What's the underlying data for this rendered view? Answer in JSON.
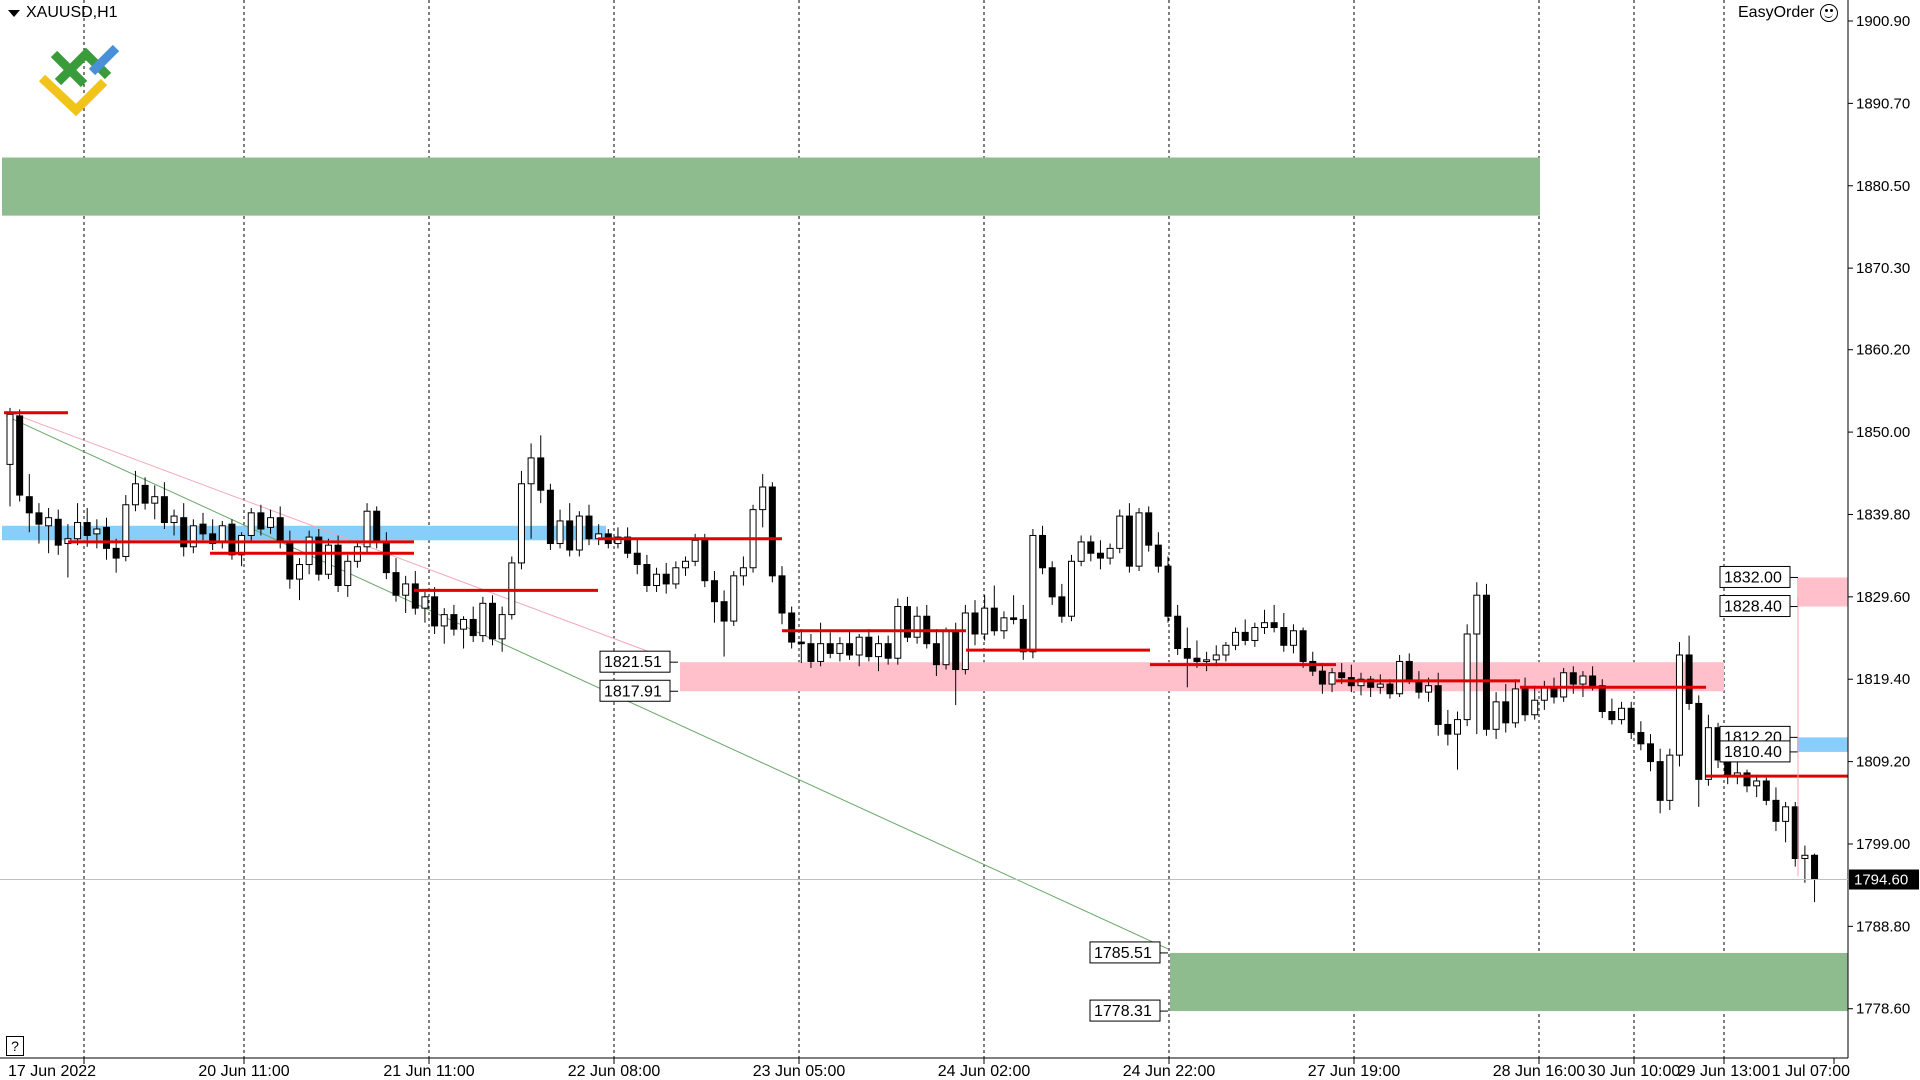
{
  "window": {
    "symbol_title": "XAUUSD,H1",
    "plugin_label": "EasyOrder",
    "plugin_icon": "smiley-icon",
    "help_label": "?",
    "logo_icon": "fx-logo-icon"
  },
  "chart_data": {
    "type": "candlestick",
    "symbol": "XAUUSD",
    "timeframe": "H1",
    "current_price": 1794.6,
    "ylim": [
      1772.5,
      1903.5
    ],
    "y_ticks": [
      1900.9,
      1890.7,
      1880.5,
      1870.3,
      1860.2,
      1850.0,
      1839.8,
      1829.6,
      1819.4,
      1809.2,
      1799.0,
      1788.8,
      1778.6
    ],
    "x_tick_labels": [
      "17 Jun 2022",
      "20 Jun 11:00",
      "21 Jun 11:00",
      "22 Jun 08:00",
      "23 Jun 05:00",
      "24 Jun 02:00",
      "24 Jun 22:00",
      "27 Jun 19:00",
      "28 Jun 16:00",
      "29 Jun 13:00",
      "30 Jun 10:00",
      "1 Jul 07:00"
    ],
    "grid": "vertical-dotted",
    "zones": [
      {
        "kind": "supply",
        "color": "#8fbc8f",
        "top": 1884.0,
        "bottom": 1876.8,
        "x_start_bar": 0,
        "x_end_bar": 161
      },
      {
        "kind": "demand",
        "color": "#8fbc8f",
        "top": 1785.51,
        "bottom": 1778.31,
        "x_start_bar": 122,
        "x_end_bar": 193,
        "labels": [
          "1785.51",
          "1778.31"
        ]
      },
      {
        "kind": "range",
        "color": "#ffc0cb",
        "top": 1821.51,
        "bottom": 1817.91,
        "x_start_bar": 71,
        "x_end_bar": 180,
        "labels": [
          "1821.51",
          "1817.91"
        ]
      },
      {
        "kind": "range",
        "color": "#ffc0cb",
        "top": 1832.0,
        "bottom": 1828.4,
        "x_start_bar": 188,
        "x_end_bar": 193,
        "labels": [
          "1832.00",
          "1828.40"
        ]
      },
      {
        "kind": "range",
        "color": "#87cefa",
        "top": 1812.2,
        "bottom": 1810.4,
        "x_start_bar": 188,
        "x_end_bar": 193,
        "labels": [
          "1812.20",
          "1810.40"
        ]
      },
      {
        "kind": "range",
        "color": "#87cefa",
        "top": 1838.4,
        "bottom": 1836.6,
        "x_start_bar": 0,
        "x_end_bar": 63
      }
    ],
    "levels": [
      {
        "price": 1852.4,
        "from_bar": 0,
        "to_bar": 7
      },
      {
        "price": 1836.4,
        "from_bar": 7,
        "to_bar": 24
      },
      {
        "price": 1835.0,
        "from_bar": 24,
        "to_bar": 43
      },
      {
        "price": 1830.4,
        "from_bar": 43,
        "to_bar": 62
      },
      {
        "price": 1836.8,
        "from_bar": 62,
        "to_bar": 82
      },
      {
        "price": 1825.4,
        "from_bar": 82,
        "to_bar": 101
      },
      {
        "price": 1823.0,
        "from_bar": 101,
        "to_bar": 120
      },
      {
        "price": 1821.2,
        "from_bar": 120,
        "to_bar": 140
      },
      {
        "price": 1819.2,
        "from_bar": 140,
        "to_bar": 159
      },
      {
        "price": 1818.4,
        "from_bar": 159,
        "to_bar": 179
      },
      {
        "price": 1807.4,
        "from_bar": 179,
        "to_bar": 193
      }
    ],
    "trendlines": [
      {
        "color": "#6aa86a",
        "from": [
          0,
          1852.0
        ],
        "to": [
          121,
          1786.0
        ]
      },
      {
        "color": "#f4a6b6",
        "from": [
          0,
          1852.6
        ],
        "to": [
          68,
          1822.2
        ]
      }
    ],
    "candles_ohlc": [
      [
        1846.0,
        1853.0,
        1840.8,
        1852.2
      ],
      [
        1852.0,
        1852.8,
        1841.4,
        1842.2
      ],
      [
        1842.0,
        1844.8,
        1837.6,
        1840.0
      ],
      [
        1840.0,
        1841.2,
        1836.2,
        1838.6
      ],
      [
        1838.4,
        1840.6,
        1835.0,
        1839.4
      ],
      [
        1839.2,
        1840.4,
        1834.8,
        1836.0
      ],
      [
        1836.2,
        1838.6,
        1832.0,
        1836.8
      ],
      [
        1836.8,
        1841.2,
        1836.0,
        1838.8
      ],
      [
        1838.8,
        1840.6,
        1835.8,
        1837.2
      ],
      [
        1837.4,
        1839.2,
        1835.6,
        1838.0
      ],
      [
        1838.2,
        1839.4,
        1834.2,
        1835.6
      ],
      [
        1835.6,
        1836.8,
        1832.6,
        1834.4
      ],
      [
        1834.6,
        1842.2,
        1834.0,
        1841.0
      ],
      [
        1841.0,
        1845.2,
        1840.2,
        1843.6
      ],
      [
        1843.4,
        1844.4,
        1840.4,
        1841.2
      ],
      [
        1841.2,
        1843.4,
        1839.2,
        1842.0
      ],
      [
        1842.0,
        1843.8,
        1838.0,
        1838.8
      ],
      [
        1838.8,
        1840.4,
        1837.2,
        1839.6
      ],
      [
        1839.4,
        1841.2,
        1834.6,
        1835.8
      ],
      [
        1835.8,
        1839.2,
        1835.0,
        1838.4
      ],
      [
        1838.6,
        1840.0,
        1836.6,
        1837.4
      ],
      [
        1837.4,
        1839.2,
        1835.4,
        1836.2
      ],
      [
        1836.4,
        1839.0,
        1835.6,
        1838.4
      ],
      [
        1838.6,
        1839.2,
        1834.2,
        1834.8
      ],
      [
        1834.8,
        1837.6,
        1833.4,
        1837.2
      ],
      [
        1837.2,
        1840.6,
        1836.4,
        1840.0
      ],
      [
        1840.0,
        1841.0,
        1837.2,
        1838.0
      ],
      [
        1838.2,
        1840.4,
        1837.4,
        1839.4
      ],
      [
        1839.4,
        1840.8,
        1835.6,
        1836.4
      ],
      [
        1836.4,
        1837.8,
        1830.6,
        1831.8
      ],
      [
        1831.8,
        1834.4,
        1829.2,
        1833.6
      ],
      [
        1833.6,
        1837.8,
        1832.4,
        1837.0
      ],
      [
        1837.0,
        1838.0,
        1831.6,
        1832.4
      ],
      [
        1832.4,
        1836.8,
        1831.8,
        1836.0
      ],
      [
        1836.0,
        1837.2,
        1830.2,
        1831.0
      ],
      [
        1831.0,
        1834.8,
        1829.6,
        1834.0
      ],
      [
        1834.0,
        1836.4,
        1833.2,
        1835.8
      ],
      [
        1835.8,
        1841.2,
        1835.0,
        1840.2
      ],
      [
        1840.2,
        1840.8,
        1835.6,
        1836.4
      ],
      [
        1836.4,
        1837.6,
        1831.8,
        1832.6
      ],
      [
        1832.6,
        1834.4,
        1829.0,
        1829.8
      ],
      [
        1829.8,
        1832.2,
        1827.6,
        1831.2
      ],
      [
        1831.2,
        1832.8,
        1827.4,
        1828.2
      ],
      [
        1828.2,
        1830.2,
        1826.4,
        1829.6
      ],
      [
        1829.6,
        1830.8,
        1825.0,
        1826.0
      ],
      [
        1826.0,
        1828.2,
        1823.8,
        1827.4
      ],
      [
        1827.4,
        1828.6,
        1824.8,
        1825.6
      ],
      [
        1825.6,
        1827.2,
        1823.2,
        1826.8
      ],
      [
        1826.8,
        1828.4,
        1824.0,
        1824.8
      ],
      [
        1824.8,
        1829.6,
        1824.0,
        1828.8
      ],
      [
        1828.8,
        1829.8,
        1823.6,
        1824.4
      ],
      [
        1824.4,
        1828.4,
        1822.8,
        1827.4
      ],
      [
        1827.4,
        1834.6,
        1826.8,
        1833.8
      ],
      [
        1833.8,
        1845.2,
        1833.0,
        1843.6
      ],
      [
        1843.6,
        1848.6,
        1836.8,
        1846.8
      ],
      [
        1846.8,
        1849.6,
        1841.2,
        1842.8
      ],
      [
        1842.8,
        1843.6,
        1835.4,
        1836.2
      ],
      [
        1836.2,
        1840.4,
        1835.6,
        1839.0
      ],
      [
        1839.0,
        1841.2,
        1834.6,
        1835.4
      ],
      [
        1835.4,
        1840.2,
        1834.6,
        1839.6
      ],
      [
        1839.6,
        1841.0,
        1836.0,
        1836.8
      ],
      [
        1836.8,
        1838.6,
        1836.0,
        1837.4
      ],
      [
        1837.4,
        1838.0,
        1835.6,
        1836.2
      ],
      [
        1836.2,
        1838.2,
        1835.6,
        1837.0
      ],
      [
        1837.0,
        1838.2,
        1834.4,
        1835.0
      ],
      [
        1835.0,
        1836.8,
        1832.4,
        1833.6
      ],
      [
        1833.6,
        1834.8,
        1830.2,
        1831.0
      ],
      [
        1831.0,
        1833.2,
        1830.2,
        1832.4
      ],
      [
        1832.4,
        1833.8,
        1830.0,
        1831.2
      ],
      [
        1831.2,
        1834.0,
        1830.6,
        1833.2
      ],
      [
        1833.2,
        1834.6,
        1832.2,
        1834.0
      ],
      [
        1834.0,
        1837.4,
        1833.4,
        1836.6
      ],
      [
        1836.6,
        1837.4,
        1830.8,
        1831.6
      ],
      [
        1831.6,
        1832.8,
        1826.4,
        1829.0
      ],
      [
        1829.0,
        1830.4,
        1822.2,
        1826.6
      ],
      [
        1826.6,
        1832.8,
        1826.0,
        1832.2
      ],
      [
        1832.2,
        1834.6,
        1831.0,
        1833.2
      ],
      [
        1833.2,
        1841.0,
        1832.6,
        1840.4
      ],
      [
        1840.4,
        1844.8,
        1838.2,
        1843.2
      ],
      [
        1843.2,
        1843.8,
        1831.4,
        1832.2
      ],
      [
        1832.2,
        1833.4,
        1826.2,
        1827.6
      ],
      [
        1827.6,
        1828.4,
        1823.2,
        1824.0
      ],
      [
        1824.0,
        1825.6,
        1821.4,
        1823.8
      ],
      [
        1823.8,
        1825.0,
        1820.8,
        1821.6
      ],
      [
        1821.6,
        1826.4,
        1821.0,
        1823.8
      ],
      [
        1823.8,
        1825.2,
        1822.0,
        1822.6
      ],
      [
        1822.6,
        1824.6,
        1821.6,
        1823.8
      ],
      [
        1823.8,
        1825.4,
        1821.8,
        1822.4
      ],
      [
        1822.4,
        1825.0,
        1821.0,
        1824.6
      ],
      [
        1824.6,
        1825.6,
        1821.6,
        1822.2
      ],
      [
        1822.2,
        1824.8,
        1820.4,
        1823.8
      ],
      [
        1823.8,
        1824.8,
        1821.2,
        1822.0
      ],
      [
        1822.0,
        1829.4,
        1821.2,
        1828.4
      ],
      [
        1828.4,
        1829.6,
        1824.0,
        1824.6
      ],
      [
        1824.6,
        1828.4,
        1823.8,
        1827.2
      ],
      [
        1827.2,
        1828.6,
        1823.2,
        1823.8
      ],
      [
        1823.8,
        1825.6,
        1819.8,
        1821.2
      ],
      [
        1821.2,
        1825.8,
        1820.6,
        1825.4
      ],
      [
        1825.4,
        1826.4,
        1816.2,
        1820.6
      ],
      [
        1820.6,
        1828.6,
        1820.0,
        1827.6
      ],
      [
        1827.6,
        1829.2,
        1823.6,
        1825.0
      ],
      [
        1825.0,
        1829.8,
        1824.2,
        1828.2
      ],
      [
        1828.2,
        1831.0,
        1824.8,
        1825.4
      ],
      [
        1825.4,
        1827.8,
        1824.4,
        1827.0
      ],
      [
        1827.0,
        1829.8,
        1826.2,
        1826.8
      ],
      [
        1826.8,
        1828.6,
        1821.8,
        1822.8
      ],
      [
        1822.8,
        1838.0,
        1822.0,
        1837.2
      ],
      [
        1837.2,
        1838.4,
        1832.4,
        1833.2
      ],
      [
        1833.2,
        1834.0,
        1828.6,
        1829.6
      ],
      [
        1829.6,
        1831.2,
        1826.4,
        1827.2
      ],
      [
        1827.2,
        1834.8,
        1826.6,
        1834.0
      ],
      [
        1834.0,
        1837.2,
        1833.4,
        1836.4
      ],
      [
        1836.4,
        1837.2,
        1834.0,
        1835.0
      ],
      [
        1835.0,
        1836.6,
        1833.0,
        1834.4
      ],
      [
        1834.4,
        1836.2,
        1833.6,
        1835.6
      ],
      [
        1835.6,
        1840.4,
        1835.0,
        1839.6
      ],
      [
        1839.6,
        1841.2,
        1832.6,
        1833.4
      ],
      [
        1833.4,
        1840.6,
        1832.8,
        1840.0
      ],
      [
        1840.0,
        1840.8,
        1835.2,
        1836.0
      ],
      [
        1836.0,
        1837.6,
        1832.6,
        1833.4
      ],
      [
        1833.4,
        1834.6,
        1826.4,
        1827.2
      ],
      [
        1827.2,
        1828.6,
        1822.4,
        1823.2
      ],
      [
        1823.2,
        1825.8,
        1818.4,
        1822.0
      ],
      [
        1822.0,
        1824.2,
        1820.8,
        1821.6
      ],
      [
        1821.6,
        1822.8,
        1820.4,
        1821.8
      ],
      [
        1821.8,
        1823.6,
        1821.0,
        1822.4
      ],
      [
        1822.4,
        1824.0,
        1821.6,
        1823.6
      ],
      [
        1823.6,
        1825.8,
        1823.0,
        1825.2
      ],
      [
        1825.2,
        1826.8,
        1823.6,
        1824.2
      ],
      [
        1824.2,
        1826.4,
        1823.4,
        1825.8
      ],
      [
        1825.8,
        1828.0,
        1825.0,
        1826.4
      ],
      [
        1826.4,
        1828.6,
        1825.2,
        1825.8
      ],
      [
        1825.8,
        1827.6,
        1822.8,
        1823.6
      ],
      [
        1823.6,
        1826.2,
        1822.6,
        1825.4
      ],
      [
        1825.4,
        1825.8,
        1820.8,
        1821.6
      ],
      [
        1821.6,
        1822.8,
        1819.8,
        1820.4
      ],
      [
        1820.4,
        1821.4,
        1817.6,
        1818.8
      ],
      [
        1818.8,
        1820.8,
        1817.8,
        1820.2
      ],
      [
        1820.2,
        1821.4,
        1818.8,
        1819.6
      ],
      [
        1819.6,
        1821.2,
        1817.8,
        1818.6
      ],
      [
        1818.6,
        1820.2,
        1817.4,
        1819.4
      ],
      [
        1819.4,
        1819.8,
        1817.2,
        1818.4
      ],
      [
        1818.4,
        1820.0,
        1817.6,
        1818.8
      ],
      [
        1818.8,
        1819.4,
        1817.0,
        1817.6
      ],
      [
        1817.6,
        1822.4,
        1817.2,
        1821.6
      ],
      [
        1821.6,
        1822.6,
        1818.8,
        1819.2
      ],
      [
        1819.2,
        1820.4,
        1817.0,
        1817.8
      ],
      [
        1817.8,
        1819.6,
        1816.6,
        1818.6
      ],
      [
        1818.6,
        1820.2,
        1812.4,
        1813.8
      ],
      [
        1813.8,
        1815.6,
        1811.2,
        1812.6
      ],
      [
        1812.6,
        1815.4,
        1808.2,
        1814.4
      ],
      [
        1814.4,
        1826.2,
        1813.6,
        1825.0
      ],
      [
        1825.0,
        1831.4,
        1812.6,
        1829.8
      ],
      [
        1829.8,
        1831.2,
        1812.4,
        1813.2
      ],
      [
        1813.2,
        1817.8,
        1812.0,
        1816.6
      ],
      [
        1816.6,
        1818.8,
        1812.8,
        1814.0
      ],
      [
        1814.0,
        1819.4,
        1813.4,
        1818.2
      ],
      [
        1818.2,
        1819.6,
        1814.2,
        1815.0
      ],
      [
        1815.0,
        1818.6,
        1814.4,
        1816.8
      ],
      [
        1816.8,
        1819.2,
        1815.6,
        1818.4
      ],
      [
        1818.4,
        1819.6,
        1816.4,
        1817.2
      ],
      [
        1817.2,
        1820.8,
        1816.6,
        1820.2
      ],
      [
        1820.2,
        1821.0,
        1817.6,
        1818.8
      ],
      [
        1818.8,
        1820.4,
        1817.2,
        1819.8
      ],
      [
        1819.8,
        1821.0,
        1818.0,
        1818.6
      ],
      [
        1818.6,
        1819.4,
        1814.6,
        1815.4
      ],
      [
        1815.4,
        1817.0,
        1813.8,
        1814.4
      ],
      [
        1814.4,
        1816.6,
        1813.8,
        1815.8
      ],
      [
        1815.8,
        1816.6,
        1812.0,
        1812.8
      ],
      [
        1812.8,
        1814.2,
        1810.6,
        1811.4
      ],
      [
        1811.4,
        1812.6,
        1808.0,
        1809.2
      ],
      [
        1809.2,
        1810.8,
        1802.8,
        1804.4
      ],
      [
        1804.4,
        1810.8,
        1803.2,
        1810.0
      ],
      [
        1810.0,
        1824.0,
        1808.6,
        1822.4
      ],
      [
        1822.4,
        1824.8,
        1815.6,
        1816.4
      ],
      [
        1816.4,
        1817.4,
        1803.6,
        1807.0
      ],
      [
        1807.0,
        1815.0,
        1806.2,
        1813.4
      ],
      [
        1813.4,
        1814.0,
        1808.4,
        1809.4
      ],
      [
        1809.4,
        1810.4,
        1806.4,
        1807.4
      ],
      [
        1807.4,
        1809.2,
        1806.4,
        1807.8
      ],
      [
        1807.8,
        1808.2,
        1805.4,
        1806.2
      ],
      [
        1806.2,
        1807.6,
        1804.8,
        1806.8
      ],
      [
        1806.8,
        1807.2,
        1803.8,
        1804.4
      ],
      [
        1804.4,
        1806.0,
        1800.6,
        1801.8
      ],
      [
        1801.8,
        1804.2,
        1799.2,
        1803.6
      ],
      [
        1803.6,
        1804.2,
        1796.2,
        1797.2
      ],
      [
        1797.2,
        1798.8,
        1794.2,
        1797.6
      ],
      [
        1797.6,
        1797.8,
        1791.8,
        1794.6
      ]
    ]
  }
}
